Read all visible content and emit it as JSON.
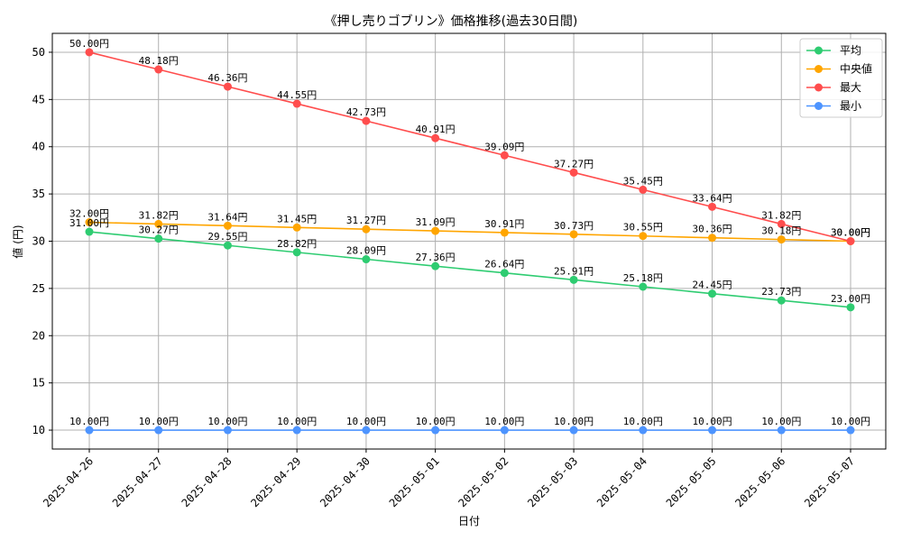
{
  "chart_data": {
    "type": "line",
    "title": "《押し売りゴブリン》価格推移(過去30日間)",
    "xlabel": "日付",
    "ylabel": "値 (円)",
    "ylim": [
      8,
      52
    ],
    "yticks": [
      10,
      15,
      20,
      25,
      30,
      35,
      40,
      45,
      50
    ],
    "grid": true,
    "legend_position": "top-right",
    "value_suffix": "円",
    "x": [
      "2025-04-26",
      "2025-04-27",
      "2025-04-28",
      "2025-04-29",
      "2025-04-30",
      "2025-05-01",
      "2025-05-02",
      "2025-05-03",
      "2025-05-04",
      "2025-05-05",
      "2025-05-06",
      "2025-05-07"
    ],
    "series": [
      {
        "name": "平均",
        "color": "#2ecc71",
        "values": [
          31.0,
          30.27,
          29.55,
          28.82,
          28.09,
          27.36,
          26.64,
          25.91,
          25.18,
          24.45,
          23.73,
          23.0
        ]
      },
      {
        "name": "中央値",
        "color": "#ffa500",
        "values": [
          32.0,
          31.82,
          31.64,
          31.45,
          31.27,
          31.09,
          30.91,
          30.73,
          30.55,
          30.36,
          30.18,
          30.0
        ]
      },
      {
        "name": "最大",
        "color": "#ff4d4d",
        "values": [
          50.0,
          48.18,
          46.36,
          44.55,
          42.73,
          40.91,
          39.09,
          37.27,
          35.45,
          33.64,
          31.82,
          30.0
        ]
      },
      {
        "name": "最小",
        "color": "#4d94ff",
        "values": [
          10.0,
          10.0,
          10.0,
          10.0,
          10.0,
          10.0,
          10.0,
          10.0,
          10.0,
          10.0,
          10.0,
          10.0
        ]
      }
    ]
  }
}
